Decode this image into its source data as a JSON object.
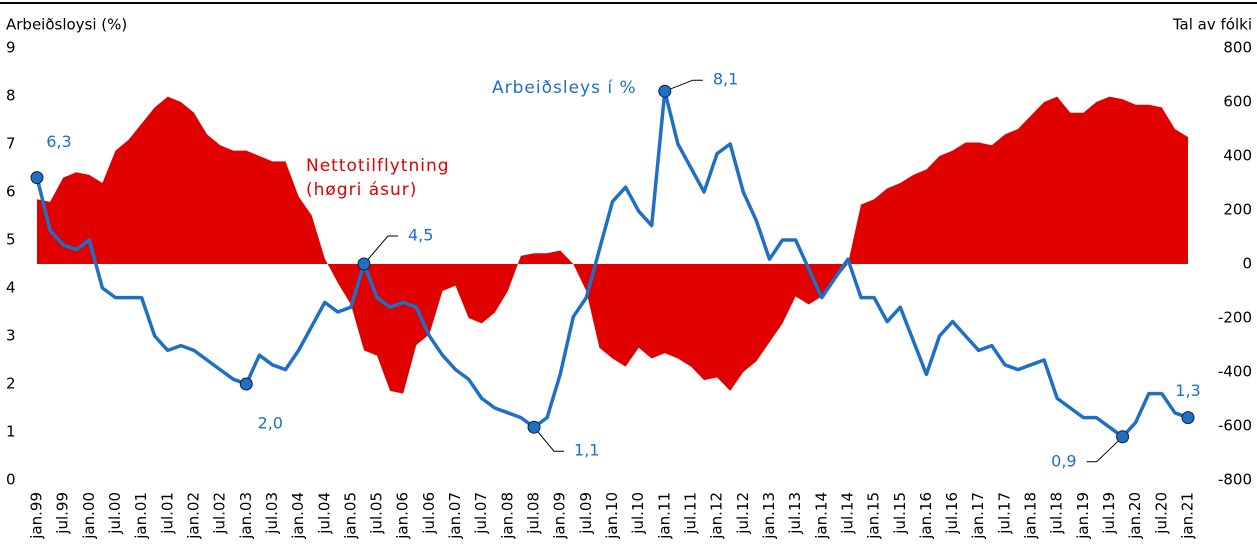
{
  "chart_data": {
    "type": "line",
    "y_axis_title": "Arbeiðsloysi (%)",
    "y2_axis_title": "Tal av fólki",
    "categories": [
      "jan.99",
      null,
      "jul.99",
      null,
      "jan.00",
      null,
      "jul.00",
      null,
      "jan.01",
      null,
      "jul.01",
      null,
      "jan.02",
      null,
      "jul.02",
      null,
      "jan.03",
      null,
      "jul.03",
      null,
      "jan.04",
      null,
      "jul.04",
      null,
      "jan.05",
      null,
      "jul.05",
      null,
      "jan.06",
      null,
      "jul.06",
      null,
      "jan.07",
      null,
      "jul.07",
      null,
      "jan.08",
      null,
      "jul.08",
      null,
      "jan.09",
      null,
      "jul.09",
      null,
      "jan.10",
      null,
      "jul.10",
      null,
      "jan.11",
      null,
      "jul.11",
      null,
      "jan.12",
      null,
      "jul.12",
      null,
      "jan.13",
      null,
      "jul.13",
      null,
      "jan.14",
      null,
      "jul.14",
      null,
      "jan.15",
      null,
      "jul.15",
      null,
      "jan.16",
      null,
      "jul.16",
      null,
      "jan.17",
      null,
      "jul.17",
      null,
      "jan.18",
      null,
      "jul.18",
      null,
      "jan.19",
      null,
      "jul.19",
      null,
      "jan.20",
      null,
      "jul.20",
      null,
      "jan.21"
    ],
    "series": [
      {
        "name": "Arbeiðsleys í %",
        "color": "#1f6fc5",
        "type": "line",
        "values": [
          6.3,
          5.2,
          4.9,
          4.8,
          5.0,
          4.0,
          3.8,
          3.8,
          3.8,
          3.0,
          2.7,
          2.8,
          2.7,
          2.5,
          2.3,
          2.1,
          2.0,
          2.6,
          2.4,
          2.3,
          2.7,
          3.2,
          3.7,
          3.5,
          3.6,
          4.5,
          3.8,
          3.6,
          3.7,
          3.6,
          3.0,
          2.6,
          2.3,
          2.1,
          1.7,
          1.5,
          1.4,
          1.3,
          1.1,
          1.3,
          2.2,
          3.4,
          3.8,
          4.8,
          5.8,
          6.1,
          5.6,
          5.3,
          8.1,
          7.0,
          6.5,
          6.0,
          6.8,
          7.0,
          6.0,
          5.4,
          4.6,
          5.0,
          5.0,
          4.4,
          3.8,
          4.2,
          4.6,
          3.8,
          3.8,
          3.3,
          3.6,
          2.9,
          2.2,
          3.0,
          3.3,
          3.0,
          2.7,
          2.8,
          2.4,
          2.3,
          2.4,
          2.5,
          1.7,
          1.5,
          1.3,
          1.3,
          1.1,
          0.9,
          1.2,
          1.8,
          1.8,
          1.4,
          1.3
        ],
        "value_labels": [
          "6,3",
          null,
          null,
          null,
          null,
          null,
          null,
          null,
          null,
          null,
          null,
          null,
          null,
          null,
          null,
          null,
          "2,0",
          null,
          null,
          null,
          null,
          null,
          null,
          null,
          null,
          "4,5",
          null,
          null,
          null,
          null,
          null,
          null,
          null,
          null,
          null,
          null,
          null,
          null,
          "1,1",
          null,
          null,
          null,
          null,
          null,
          null,
          null,
          null,
          null,
          "8,1",
          null,
          null,
          null,
          null,
          null,
          null,
          null,
          null,
          null,
          null,
          null,
          null,
          null,
          null,
          null,
          null,
          null,
          null,
          null,
          null,
          null,
          null,
          null,
          null,
          null,
          null,
          null,
          null,
          null,
          null,
          null,
          null,
          null,
          null,
          "0,9",
          null,
          null,
          null,
          null,
          "1,3"
        ]
      },
      {
        "name": "Nettotilflytning (høgri ásur)",
        "color": "#e00000",
        "type": "area",
        "axis": "y2",
        "values": [
          240,
          230,
          320,
          340,
          330,
          300,
          420,
          460,
          520,
          580,
          620,
          600,
          560,
          480,
          440,
          420,
          420,
          400,
          380,
          380,
          250,
          180,
          20,
          -70,
          -150,
          -320,
          -340,
          -470,
          -480,
          -300,
          -260,
          -100,
          -80,
          -200,
          -220,
          -180,
          -100,
          30,
          40,
          40,
          50,
          0,
          -100,
          -310,
          -350,
          -380,
          -310,
          -350,
          -330,
          -350,
          -380,
          -430,
          -420,
          -470,
          -400,
          -360,
          -290,
          -220,
          -120,
          -150,
          -120,
          -60,
          0,
          220,
          240,
          280,
          300,
          330,
          350,
          400,
          420,
          450,
          450,
          440,
          480,
          500,
          550,
          600,
          620,
          560,
          560,
          600,
          620,
          610,
          590,
          590,
          580,
          500,
          470
        ]
      }
    ],
    "ylim": [
      0,
      9
    ],
    "yticks": [
      0,
      1,
      2,
      3,
      4,
      5,
      6,
      7,
      8,
      9
    ],
    "y2lim": [
      -800,
      800
    ],
    "y2ticks": [
      -800,
      -600,
      -400,
      -200,
      0,
      200,
      400,
      600,
      800
    ]
  }
}
